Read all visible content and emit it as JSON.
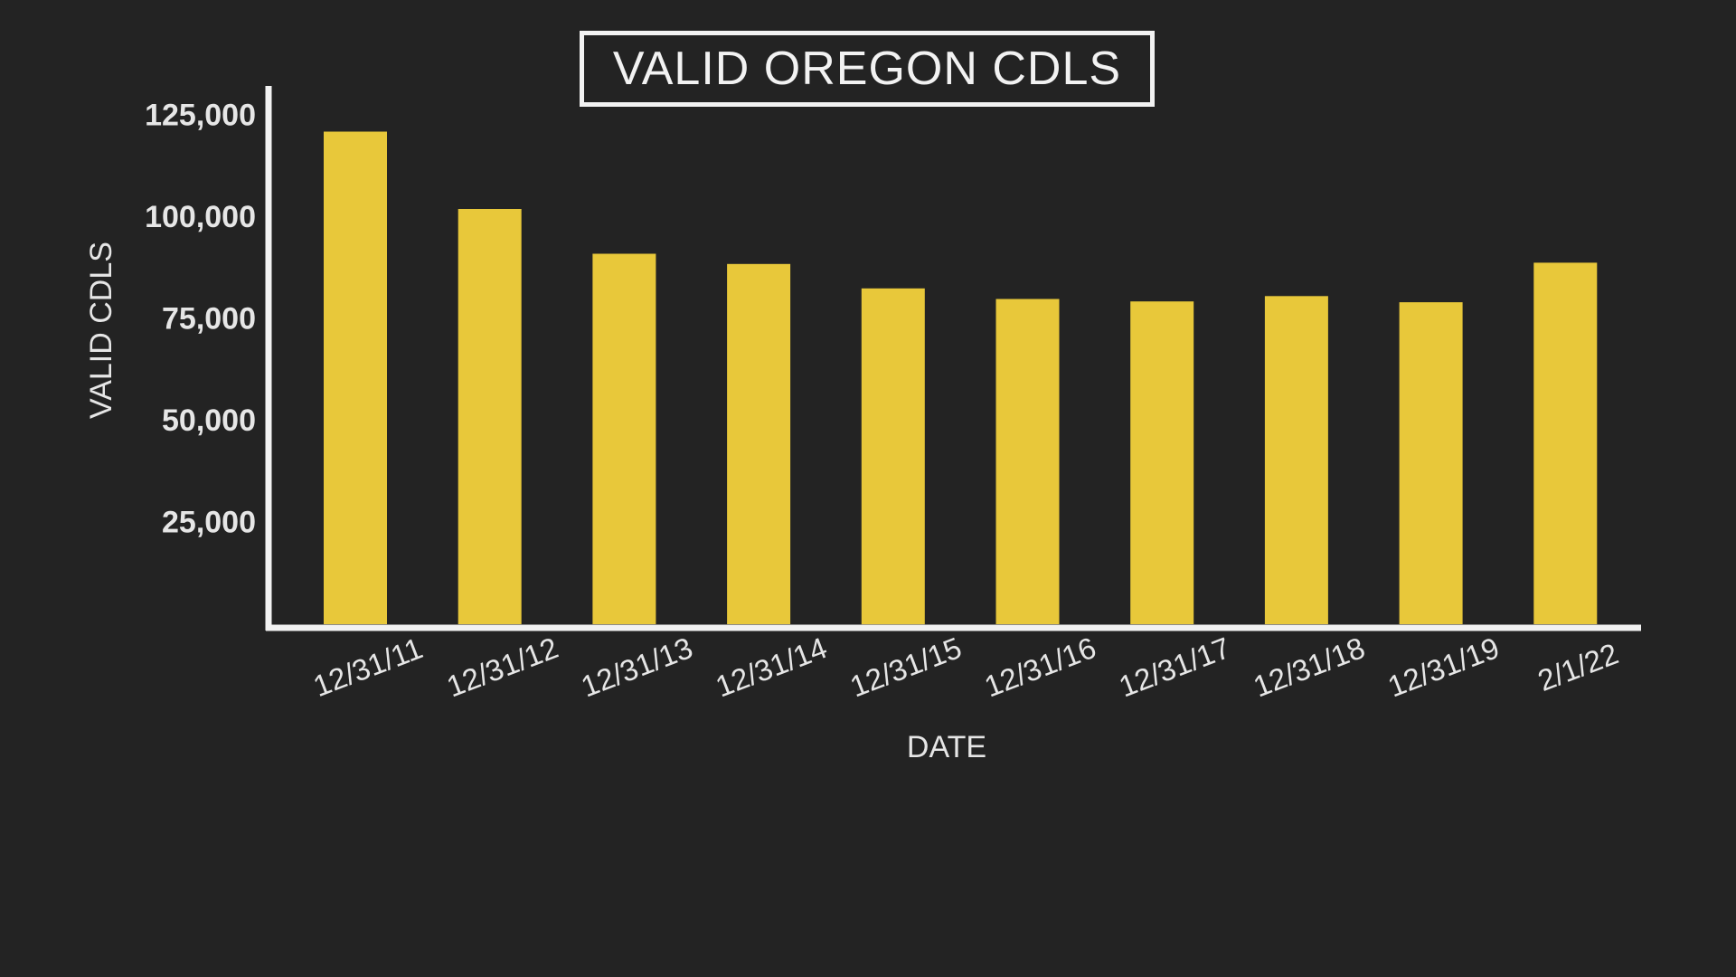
{
  "chart_data": {
    "type": "bar",
    "title": "VALID OREGON CDLS",
    "xlabel": "DATE",
    "ylabel": "VALID CDLS",
    "categories": [
      "12/31/11",
      "12/31/12",
      "12/31/13",
      "12/31/14",
      "12/31/15",
      "12/31/16",
      "12/31/17",
      "12/31/18",
      "12/31/19",
      "2/1/22"
    ],
    "values": [
      121000,
      102000,
      91000,
      88500,
      82500,
      79900,
      79300,
      80600,
      79100,
      88800
    ],
    "yticks": [
      25000,
      50000,
      75000,
      100000,
      125000
    ],
    "ytick_labels": [
      "25,000",
      "50,000",
      "75,000",
      "100,000",
      "125,000"
    ],
    "ylim": [
      0,
      130000
    ],
    "grid": false,
    "colors": {
      "bar": "#e8c83a",
      "background": "#232323",
      "axis": "#f2f2f2",
      "text": "#e6e6e6"
    }
  }
}
